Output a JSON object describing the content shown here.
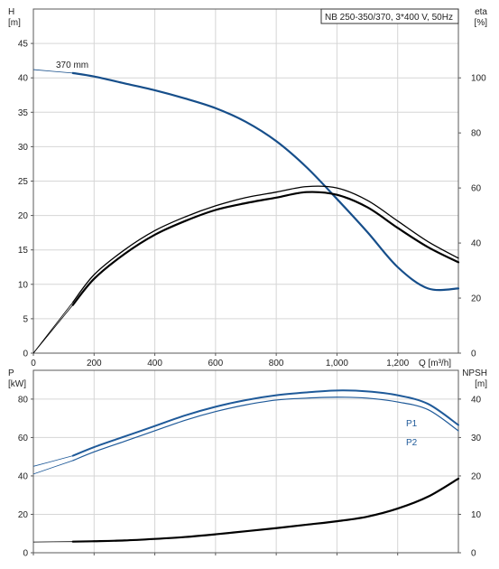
{
  "colors": {
    "head_curve": "#164e8a",
    "power_curve": "#1f5a99",
    "efficiency_curve": "#000000",
    "npsh_curve": "#000000",
    "grid": "#d6d6d6",
    "frame": "#5a5a5a"
  },
  "header": {
    "title_box": "NB 250-350/370, 3*400 V, 50Hz"
  },
  "chart_data": [
    {
      "type": "line",
      "title": "NB 250-350/370, 3*400 V, 50Hz",
      "x_axis": {
        "label": "Q [m³/h]",
        "range": [
          0,
          1400
        ],
        "ticks": [
          0,
          200,
          400,
          600,
          800,
          1000,
          1200
        ],
        "tick_labels": [
          "0",
          "200",
          "400",
          "600",
          "800",
          "1,000",
          "1,200"
        ]
      },
      "y_left": {
        "label_line1": "H",
        "label_line2": "[m]",
        "range": [
          0,
          50
        ],
        "ticks": [
          0,
          5,
          10,
          15,
          20,
          25,
          30,
          35,
          40,
          45
        ]
      },
      "y_right": {
        "label_line1": "eta",
        "label_line2": "[%]",
        "range": [
          0,
          125
        ],
        "ticks": [
          0,
          20,
          40,
          60,
          80,
          100
        ]
      },
      "grid": true,
      "series": [
        {
          "name": "370 mm",
          "axis": "left",
          "x": [
            0,
            130,
            200,
            300,
            400,
            500,
            600,
            700,
            800,
            900,
            1000,
            1100,
            1200,
            1300,
            1400
          ],
          "y": [
            41.2,
            40.7,
            40.2,
            39.2,
            38.2,
            37.0,
            35.6,
            33.6,
            30.8,
            27.0,
            22.4,
            17.6,
            12.5,
            9.4,
            9.4
          ]
        },
        {
          "name": "",
          "axis": "right",
          "x": [
            0,
            130,
            200,
            300,
            400,
            500,
            600,
            700,
            800,
            900,
            1000,
            1100,
            1200,
            1300,
            1400
          ],
          "y": [
            0,
            18.5,
            28.5,
            37.5,
            44.5,
            49.5,
            53.5,
            56.5,
            58.5,
            60.5,
            60.0,
            55.5,
            48.0,
            40.5,
            34.5
          ]
        },
        {
          "name": "",
          "axis": "right",
          "x": [
            0,
            130,
            200,
            300,
            400,
            500,
            600,
            700,
            800,
            900,
            1000,
            1100,
            1200,
            1300,
            1400
          ],
          "y": [
            0,
            17.5,
            27.0,
            36.0,
            43.0,
            48.0,
            52.0,
            54.5,
            56.5,
            58.5,
            57.5,
            53.0,
            45.5,
            38.5,
            33.0
          ]
        }
      ]
    },
    {
      "type": "line",
      "x_axis": {
        "range": [
          0,
          1400
        ],
        "ticks": [
          0,
          200,
          400,
          600,
          800,
          1000,
          1200
        ]
      },
      "y_left": {
        "label_line1": "P",
        "label_line2": "[kW]",
        "range": [
          0,
          95
        ],
        "ticks": [
          0,
          20,
          40,
          60,
          80
        ]
      },
      "y_right": {
        "label_line1": "NPSH",
        "label_line2": "[m]",
        "range": [
          0,
          47.5
        ],
        "ticks": [
          0,
          10,
          20,
          30,
          40
        ]
      },
      "grid": true,
      "series": [
        {
          "name": "P1",
          "axis": "left",
          "x": [
            0,
            130,
            200,
            300,
            400,
            500,
            600,
            700,
            800,
            900,
            1000,
            1100,
            1200,
            1300,
            1400
          ],
          "y": [
            45.0,
            50.5,
            55.0,
            60.5,
            66.0,
            71.5,
            76.0,
            79.5,
            82.0,
            83.5,
            84.5,
            84.0,
            82.0,
            77.5,
            66.5
          ]
        },
        {
          "name": "P2",
          "axis": "left",
          "x": [
            0,
            130,
            200,
            300,
            400,
            500,
            600,
            700,
            800,
            900,
            1000,
            1100,
            1200,
            1300,
            1400
          ],
          "y": [
            41.0,
            48.0,
            52.5,
            58.0,
            63.5,
            69.0,
            73.5,
            77.0,
            79.5,
            80.5,
            81.0,
            80.5,
            78.5,
            74.5,
            63.5
          ]
        },
        {
          "name": "",
          "axis": "right",
          "x": [
            0,
            130,
            200,
            300,
            400,
            500,
            600,
            700,
            800,
            900,
            1000,
            1100,
            1200,
            1300,
            1400
          ],
          "y": [
            2.8,
            2.9,
            3.0,
            3.2,
            3.6,
            4.1,
            4.8,
            5.6,
            6.4,
            7.3,
            8.2,
            9.4,
            11.5,
            14.6,
            19.3
          ]
        }
      ]
    }
  ]
}
